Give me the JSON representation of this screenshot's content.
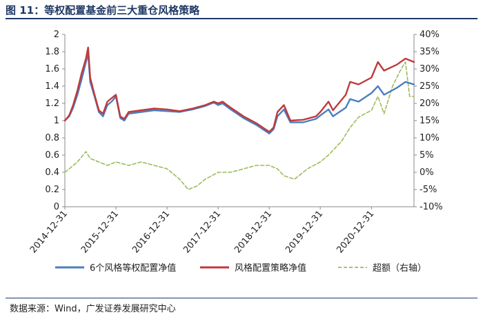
{
  "figure": {
    "title": "图 11：等权配置基金前三大重仓风格策略",
    "source": "数据来源：Wind，广发证券发展研究中心"
  },
  "colors": {
    "title": "#1f3864",
    "series_equal": "#4a7dc0",
    "series_strategy": "#c0393b",
    "series_excess": "#9bbb59"
  },
  "chart_data": {
    "type": "line",
    "title": "",
    "xlabel": "",
    "ylabel": "",
    "y2label": "",
    "x_ticks": [
      "2014-12-31",
      "2015-12-31",
      "2016-12-31",
      "2017-12-31",
      "2018-12-31",
      "2019-12-31",
      "2020-12-31"
    ],
    "x_range": [
      "2014-12-31",
      "2021-10-31"
    ],
    "ylim": [
      0,
      2
    ],
    "yticks": [
      "0",
      "0.2",
      "0.4",
      "0.6",
      "0.8",
      "1",
      "1.2",
      "1.4",
      "1.6",
      "1.8",
      "2"
    ],
    "y2lim": [
      -10,
      40
    ],
    "y2ticks": [
      "-10%",
      "-5%",
      "0%",
      "5%",
      "10%",
      "15%",
      "20%",
      "25%",
      "30%",
      "35%",
      "40%"
    ],
    "grid": false,
    "legend_position": "bottom",
    "series": [
      {
        "name": "6个风格等权配置净值",
        "axis": "left",
        "style": "solid",
        "points": [
          [
            "2014-12-31",
            1.0
          ],
          [
            "2015-01-31",
            1.05
          ],
          [
            "2015-02-28",
            1.15
          ],
          [
            "2015-03-31",
            1.3
          ],
          [
            "2015-04-30",
            1.48
          ],
          [
            "2015-05-31",
            1.68
          ],
          [
            "2015-06-15",
            1.78
          ],
          [
            "2015-06-30",
            1.45
          ],
          [
            "2015-07-31",
            1.28
          ],
          [
            "2015-08-31",
            1.1
          ],
          [
            "2015-09-30",
            1.05
          ],
          [
            "2015-10-31",
            1.18
          ],
          [
            "2015-11-30",
            1.22
          ],
          [
            "2015-12-31",
            1.28
          ],
          [
            "2016-01-31",
            1.03
          ],
          [
            "2016-02-29",
            1.0
          ],
          [
            "2016-03-31",
            1.08
          ],
          [
            "2016-06-30",
            1.1
          ],
          [
            "2016-09-30",
            1.12
          ],
          [
            "2016-12-31",
            1.11
          ],
          [
            "2017-03-31",
            1.1
          ],
          [
            "2017-06-30",
            1.13
          ],
          [
            "2017-09-30",
            1.17
          ],
          [
            "2017-11-30",
            1.21
          ],
          [
            "2017-12-31",
            1.18
          ],
          [
            "2018-01-31",
            1.2
          ],
          [
            "2018-03-31",
            1.13
          ],
          [
            "2018-06-30",
            1.03
          ],
          [
            "2018-09-30",
            0.95
          ],
          [
            "2018-12-31",
            0.85
          ],
          [
            "2019-01-31",
            0.9
          ],
          [
            "2019-02-28",
            1.05
          ],
          [
            "2019-04-15",
            1.13
          ],
          [
            "2019-05-31",
            0.98
          ],
          [
            "2019-08-31",
            0.98
          ],
          [
            "2019-11-30",
            1.02
          ],
          [
            "2019-12-31",
            1.06
          ],
          [
            "2020-02-28",
            1.13
          ],
          [
            "2020-03-31",
            1.05
          ],
          [
            "2020-06-30",
            1.15
          ],
          [
            "2020-07-31",
            1.25
          ],
          [
            "2020-09-30",
            1.22
          ],
          [
            "2020-12-31",
            1.32
          ],
          [
            "2021-02-15",
            1.4
          ],
          [
            "2021-03-31",
            1.3
          ],
          [
            "2021-06-30",
            1.38
          ],
          [
            "2021-08-31",
            1.45
          ],
          [
            "2021-10-31",
            1.42
          ]
        ]
      },
      {
        "name": "风格配置策略净值",
        "axis": "left",
        "style": "solid",
        "points": [
          [
            "2014-12-31",
            1.0
          ],
          [
            "2015-01-31",
            1.06
          ],
          [
            "2015-02-28",
            1.18
          ],
          [
            "2015-03-31",
            1.35
          ],
          [
            "2015-04-30",
            1.55
          ],
          [
            "2015-05-31",
            1.72
          ],
          [
            "2015-06-15",
            1.85
          ],
          [
            "2015-06-30",
            1.5
          ],
          [
            "2015-07-31",
            1.3
          ],
          [
            "2015-08-31",
            1.12
          ],
          [
            "2015-09-30",
            1.08
          ],
          [
            "2015-10-31",
            1.22
          ],
          [
            "2015-11-30",
            1.26
          ],
          [
            "2015-12-31",
            1.3
          ],
          [
            "2016-01-31",
            1.05
          ],
          [
            "2016-02-29",
            1.02
          ],
          [
            "2016-03-31",
            1.1
          ],
          [
            "2016-06-30",
            1.12
          ],
          [
            "2016-09-30",
            1.14
          ],
          [
            "2016-12-31",
            1.13
          ],
          [
            "2017-03-31",
            1.11
          ],
          [
            "2017-06-30",
            1.14
          ],
          [
            "2017-09-30",
            1.18
          ],
          [
            "2017-11-30",
            1.22
          ],
          [
            "2017-12-31",
            1.2
          ],
          [
            "2018-01-31",
            1.22
          ],
          [
            "2018-03-31",
            1.15
          ],
          [
            "2018-06-30",
            1.05
          ],
          [
            "2018-09-30",
            0.97
          ],
          [
            "2018-12-31",
            0.87
          ],
          [
            "2019-01-31",
            0.92
          ],
          [
            "2019-02-28",
            1.1
          ],
          [
            "2019-04-15",
            1.18
          ],
          [
            "2019-05-31",
            1.0
          ],
          [
            "2019-08-31",
            1.01
          ],
          [
            "2019-11-30",
            1.05
          ],
          [
            "2019-12-31",
            1.1
          ],
          [
            "2020-02-28",
            1.22
          ],
          [
            "2020-03-31",
            1.12
          ],
          [
            "2020-06-30",
            1.3
          ],
          [
            "2020-07-31",
            1.45
          ],
          [
            "2020-09-30",
            1.42
          ],
          [
            "2020-12-31",
            1.5
          ],
          [
            "2021-02-15",
            1.68
          ],
          [
            "2021-03-31",
            1.58
          ],
          [
            "2021-06-30",
            1.65
          ],
          [
            "2021-08-31",
            1.72
          ],
          [
            "2021-10-31",
            1.68
          ]
        ]
      },
      {
        "name": "超额（右轴）",
        "axis": "right",
        "style": "dashed",
        "points": [
          [
            "2014-12-31",
            0
          ],
          [
            "2015-01-31",
            1
          ],
          [
            "2015-03-31",
            3
          ],
          [
            "2015-05-31",
            6
          ],
          [
            "2015-06-30",
            4
          ],
          [
            "2015-08-31",
            3
          ],
          [
            "2015-10-31",
            2
          ],
          [
            "2015-12-31",
            3
          ],
          [
            "2016-03-31",
            2
          ],
          [
            "2016-06-30",
            3
          ],
          [
            "2016-09-30",
            2
          ],
          [
            "2016-12-31",
            1
          ],
          [
            "2017-03-31",
            -2
          ],
          [
            "2017-05-31",
            -5
          ],
          [
            "2017-07-31",
            -4
          ],
          [
            "2017-09-30",
            -2
          ],
          [
            "2017-12-31",
            0
          ],
          [
            "2018-03-31",
            0
          ],
          [
            "2018-06-30",
            1
          ],
          [
            "2018-09-30",
            2
          ],
          [
            "2018-12-31",
            2
          ],
          [
            "2019-02-28",
            1
          ],
          [
            "2019-04-15",
            -1
          ],
          [
            "2019-06-30",
            -2
          ],
          [
            "2019-09-30",
            1
          ],
          [
            "2019-12-31",
            3
          ],
          [
            "2020-02-28",
            5
          ],
          [
            "2020-05-31",
            9
          ],
          [
            "2020-07-31",
            13
          ],
          [
            "2020-09-30",
            16
          ],
          [
            "2020-12-31",
            18
          ],
          [
            "2021-02-15",
            22
          ],
          [
            "2021-03-31",
            17
          ],
          [
            "2021-05-31",
            25
          ],
          [
            "2021-07-31",
            30
          ],
          [
            "2021-08-31",
            32
          ],
          [
            "2021-09-30",
            22
          ],
          [
            "2021-10-31",
            22
          ]
        ]
      }
    ]
  }
}
